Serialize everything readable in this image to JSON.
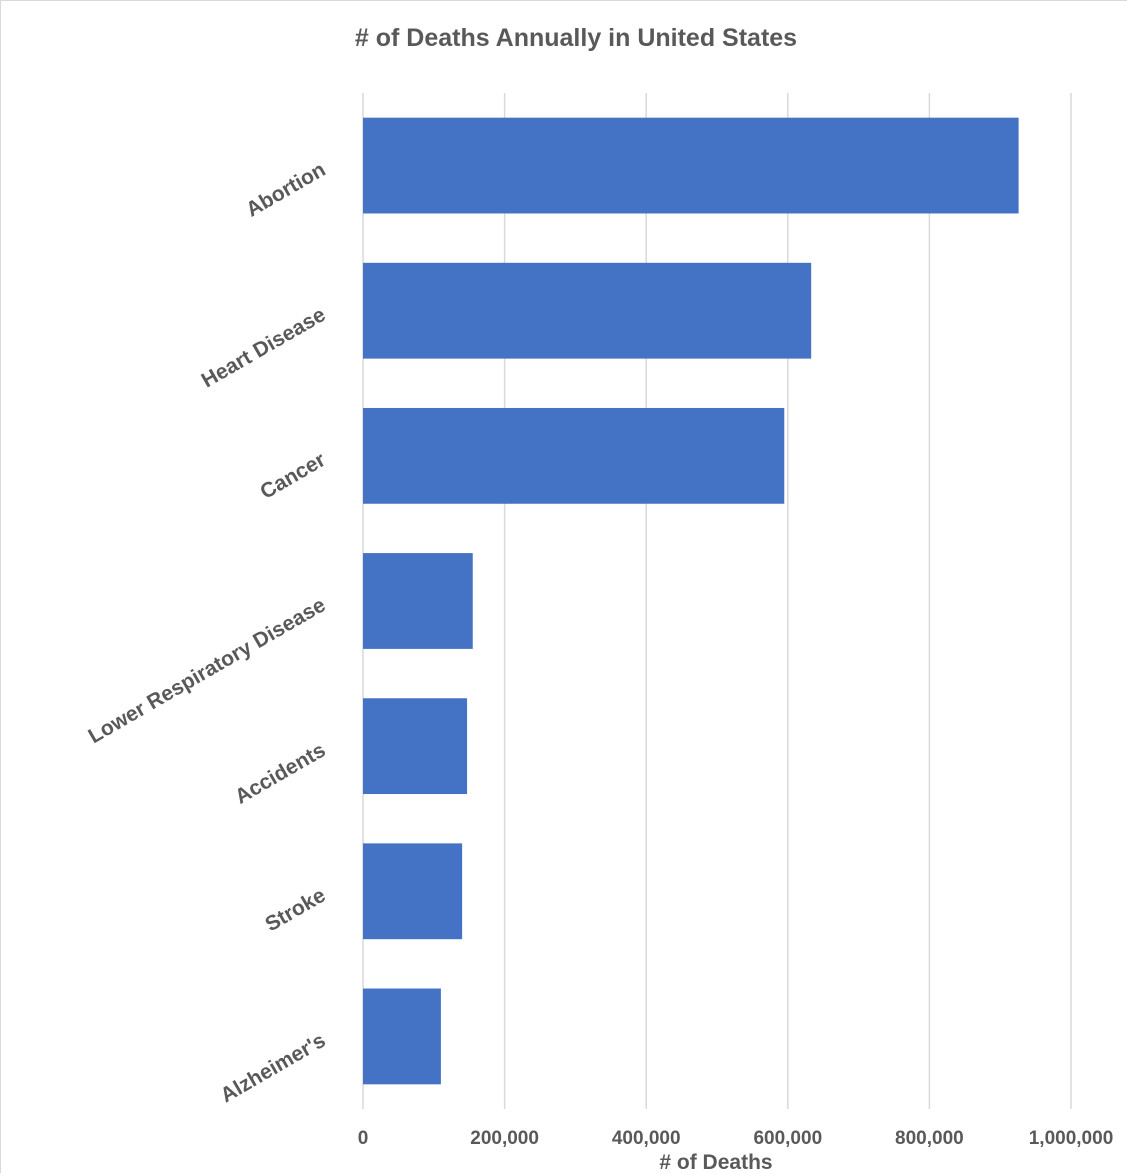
{
  "chart_data": {
    "type": "bar",
    "orientation": "horizontal",
    "title": "# of Deaths Annually in United States",
    "xlabel": "# of Deaths",
    "ylabel": "",
    "categories": [
      "Abortion",
      "Heart Disease",
      "Cancer",
      "Lower Respiratory Disease",
      "Accidents",
      "Stroke",
      "Alzheimer's"
    ],
    "values": [
      926000,
      633000,
      595000,
      155000,
      147000,
      140000,
      110000
    ],
    "xlim": [
      0,
      1000000
    ],
    "xticks": [
      0,
      200000,
      400000,
      600000,
      800000,
      1000000
    ],
    "xtick_labels": [
      "0",
      "200,000",
      "400,000",
      "600,000",
      "800,000",
      "1,000,000"
    ],
    "grid": true,
    "legend": "none",
    "bar_color": "#4472c4",
    "gridline_color": "#d9d9d9"
  }
}
